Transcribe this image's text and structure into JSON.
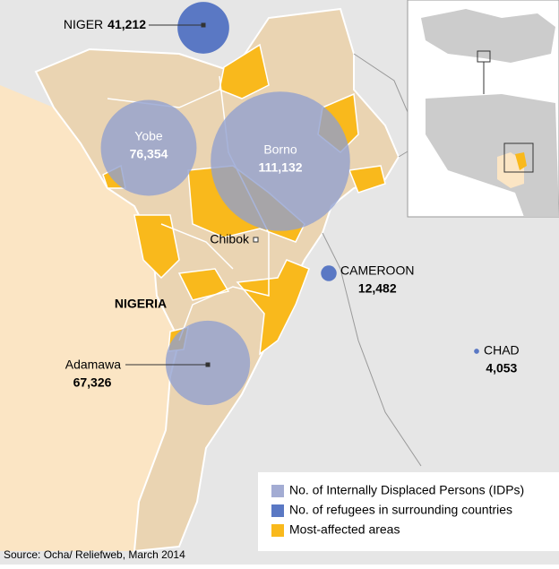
{
  "map": {
    "locations": [
      {
        "name": "NIGER",
        "value": 41212,
        "label": "41,212",
        "color": "#5a78c4"
      },
      {
        "name": "Yobe",
        "value": 76354,
        "label": "76,354",
        "color": "#8f9fd0"
      },
      {
        "name": "Borno",
        "value": 111132,
        "label": "111,132",
        "color": "#8f9fd0"
      },
      {
        "name": "Adamawa",
        "value": 67326,
        "label": "67,326",
        "color": "#8f9fd0"
      },
      {
        "name": "CAMEROON",
        "value": 12482,
        "label": "12,482",
        "color": "#5a78c4"
      },
      {
        "name": "CHAD",
        "value": 4053,
        "label": "4,053",
        "color": "#5a78c4"
      }
    ],
    "places": [
      "Chibok",
      "NIGERIA"
    ],
    "legend": [
      {
        "label": "No. of Internally Displaced Persons (IDPs)",
        "color": "#a3acd3"
      },
      {
        "label": "No. of refugees in surrounding countries",
        "color": "#5a78c4"
      },
      {
        "label": "Most-affected areas",
        "color": "#f9b91c"
      }
    ],
    "source": "Source: Ocha/ Reliefweb, March 2014"
  }
}
